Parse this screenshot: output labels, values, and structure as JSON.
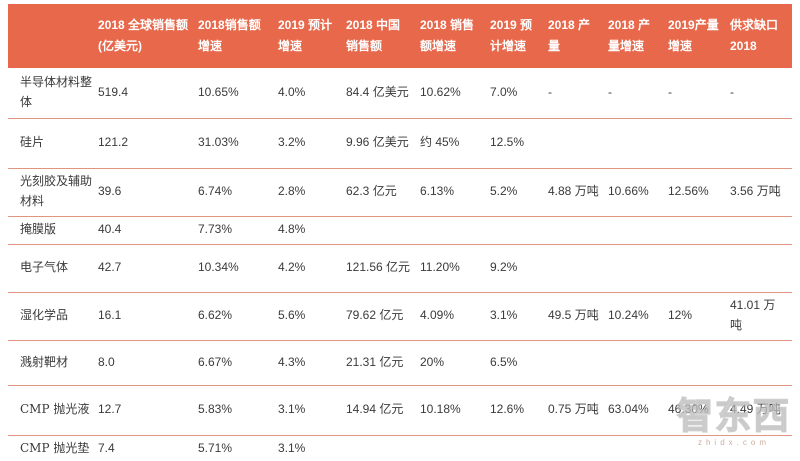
{
  "table": {
    "columns": [
      {
        "label": ""
      },
      {
        "label": "2018 全球销售额(亿美元)"
      },
      {
        "label": "2018销售额增速"
      },
      {
        "label": "2019 预计增速"
      },
      {
        "label": "2018 中国销售额"
      },
      {
        "label": "2018 销售额增速"
      },
      {
        "label": "2019 预计增速"
      },
      {
        "label": "2018 产量"
      },
      {
        "label": "2018 产量增速"
      },
      {
        "label": "2019产量增速"
      },
      {
        "label": "供求缺口 2018"
      }
    ],
    "rows": [
      {
        "label": "半导体材料整体",
        "cells": [
          "519.4",
          "10.65%",
          "4.0%",
          "84.4 亿美元",
          "10.62%",
          "7.0%",
          "-",
          "-",
          "-",
          "-"
        ]
      },
      {
        "label": "硅片",
        "cells": [
          "121.2",
          "31.03%",
          "3.2%",
          "9.96 亿美元",
          "约 45%",
          "12.5%",
          "",
          "",
          "",
          ""
        ]
      },
      {
        "label": "光刻胶及辅助材料",
        "cells": [
          "39.6",
          "6.74%",
          "2.8%",
          "62.3 亿元",
          "6.13%",
          "5.2%",
          "4.88 万吨",
          "10.66%",
          "12.56%",
          "3.56 万吨"
        ]
      },
      {
        "label": "掩膜版",
        "cells": [
          "40.4",
          "7.73%",
          "4.8%",
          "",
          "",
          "",
          "",
          "",
          "",
          ""
        ]
      },
      {
        "label": "电子气体",
        "cells": [
          "42.7",
          "10.34%",
          "4.2%",
          "121.56 亿元",
          "11.20%",
          "9.2%",
          "",
          "",
          "",
          ""
        ]
      },
      {
        "label": "湿化学品",
        "cells": [
          "16.1",
          "6.62%",
          "5.6%",
          "79.62 亿元",
          "4.09%",
          "3.1%",
          "49.5 万吨",
          "10.24%",
          "12%",
          "41.01 万吨"
        ]
      },
      {
        "label": "溅射靶材",
        "cells": [
          "8.0",
          "6.67%",
          "4.3%",
          "21.31 亿元",
          "20%",
          "6.5%",
          "",
          "",
          "",
          ""
        ]
      },
      {
        "label": "CMP 抛光液",
        "cells": [
          "12.7",
          "5.83%",
          "3.1%",
          "14.94 亿元",
          "10.18%",
          "12.6%",
          "0.75 万吨",
          "63.04%",
          "46.30%",
          "4.49 万吨"
        ]
      },
      {
        "label": "CMP 抛光垫",
        "cells": [
          "7.4",
          "5.71%",
          "3.1%",
          "",
          "",
          "",
          "",
          "",
          "",
          ""
        ]
      }
    ]
  },
  "watermark": {
    "logo": "智东西",
    "subtext": "zhidx.com"
  },
  "colors": {
    "header_bg": "#E8684B",
    "divider": "#DE9680",
    "header_text": "#FFFFFF",
    "body_text": "#3A3A3A"
  }
}
